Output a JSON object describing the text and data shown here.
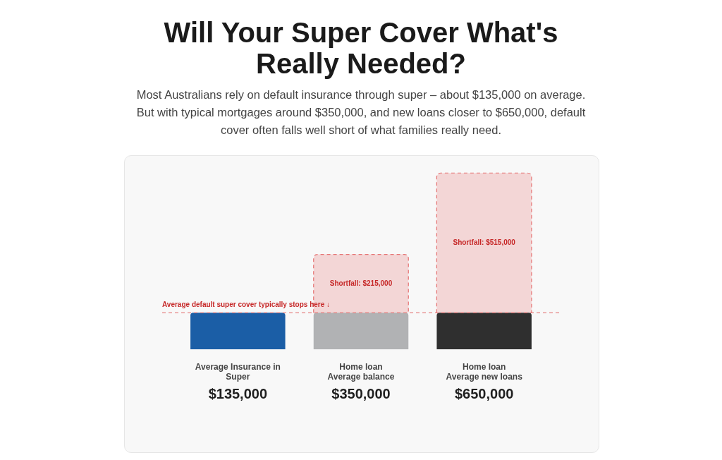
{
  "chart_data": {
    "type": "bar",
    "title": "Will Your Super Cover What's Really Needed?",
    "subtitle": "Most Australians rely on default insurance through super – about $135,000 on average. But with typical mortgages around $350,000, and new loans closer to $650,000, default cover often falls well short of what families really need.",
    "categories": [
      "Average Insurance in Super",
      "Home loan\nAverage balance",
      "Home loan\nAverage new loans"
    ],
    "stacked": true,
    "series": [
      {
        "colors": [
          "#1b5ea6",
          "#b1b2b4",
          "#2f2f2f"
        ],
        "values": [
          135000,
          135000,
          135000
        ]
      },
      {
        "color": "#f3d6d6",
        "line_style": "dashed",
        "values": [
          null,
          215000,
          515000
        ],
        "value_labels": [
          null,
          "Shortfall: $215,000",
          "Shortfall: $515,000"
        ]
      }
    ],
    "totals": [
      "$135,000",
      "$350,000",
      "$650,000"
    ],
    "ref_lines": [
      {
        "axis": "y",
        "value": 135000,
        "label": "Average default super cover typically stops here ↓",
        "color": "#e06666",
        "line_style": "dashed"
      }
    ],
    "legend": false,
    "grid": false
  }
}
